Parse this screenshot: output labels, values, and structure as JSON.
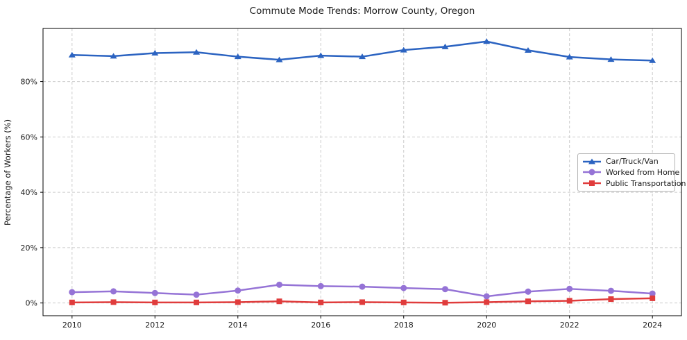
{
  "chart_data": {
    "type": "line",
    "title": "Commute Mode Trends: Morrow County, Oregon",
    "xlabel": "",
    "ylabel": "Percentage of Workers (%)",
    "x": [
      2010,
      2011,
      2012,
      2013,
      2014,
      2015,
      2016,
      2017,
      2018,
      2019,
      2020,
      2021,
      2022,
      2023,
      2024
    ],
    "series": [
      {
        "name": "Car/Truck/Van",
        "marker": "triangle",
        "color": "#2b63c1",
        "values": [
          89.6,
          89.2,
          90.3,
          90.6,
          89.0,
          87.9,
          89.4,
          89.0,
          91.4,
          92.6,
          94.5,
          91.3,
          88.9,
          88.0,
          87.6
        ]
      },
      {
        "name": "Worked from Home",
        "marker": "circle",
        "color": "#9573d6",
        "values": [
          3.9,
          4.2,
          3.6,
          3.0,
          4.5,
          6.6,
          6.1,
          5.9,
          5.4,
          5.0,
          2.4,
          4.1,
          5.1,
          4.4,
          3.4
        ]
      },
      {
        "name": "Public Transportation",
        "marker": "square",
        "color": "#e03c3c",
        "values": [
          0.2,
          0.3,
          0.2,
          0.2,
          0.3,
          0.6,
          0.2,
          0.3,
          0.2,
          0.1,
          0.3,
          0.6,
          0.8,
          1.4,
          1.7
        ]
      }
    ],
    "xlim": [
      2009.3,
      2024.7
    ],
    "ylim": [
      -4.6,
      99.2
    ],
    "xticks": [
      2010,
      2012,
      2014,
      2016,
      2018,
      2020,
      2022,
      2024
    ],
    "yticks": [
      0,
      20,
      40,
      60,
      80
    ],
    "ytick_suffix": "%",
    "grid": true,
    "grid_style": "dashed",
    "legend_position": "center-right"
  },
  "colors": {
    "grid": "#cccccc",
    "axis": "#000000",
    "tick_text": "#1a1a1a",
    "background": "#ffffff",
    "legend_border": "#b3b3b3"
  }
}
